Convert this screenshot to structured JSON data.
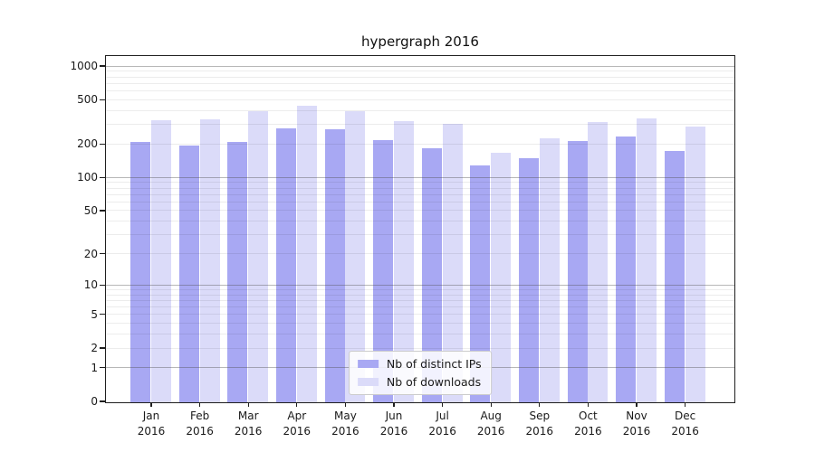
{
  "figure": {
    "background": "#ffffff"
  },
  "chart_data": {
    "type": "bar",
    "title": "hypergraph 2016",
    "categories": [
      "Jan",
      "Feb",
      "Mar",
      "Apr",
      "May",
      "Jun",
      "Jul",
      "Aug",
      "Sep",
      "Oct",
      "Nov",
      "Dec"
    ],
    "year": "2016",
    "series": [
      {
        "name": "Nb of distinct IPs",
        "color": "#a8a8f3",
        "values": [
          210,
          194,
          210,
          281,
          272,
          217,
          184,
          130,
          150,
          213,
          235,
          176
        ]
      },
      {
        "name": "Nb of downloads",
        "color": "#dbdbf9",
        "values": [
          333,
          334,
          401,
          443,
          398,
          325,
          304,
          167,
          226,
          321,
          346,
          290
        ]
      }
    ],
    "yscale": "symlog-log1p",
    "ylim": [
      0,
      1230
    ],
    "y_ticks": [
      0,
      1,
      2,
      5,
      10,
      20,
      50,
      100,
      200,
      500,
      1000
    ],
    "y_major_gridlines": [
      1,
      10,
      100,
      1000
    ],
    "y_minor_gridlines": [
      2,
      3,
      4,
      5,
      6,
      7,
      8,
      9,
      20,
      30,
      40,
      50,
      60,
      70,
      80,
      90,
      200,
      300,
      400,
      500,
      600,
      700,
      800,
      900
    ],
    "grid": true,
    "legend_position": "lower center",
    "colors": {
      "spine": "#1f1f1f",
      "text": "#1a1a1a",
      "legend_border": "#cccccc",
      "legend_bg": "#ffffff"
    }
  }
}
